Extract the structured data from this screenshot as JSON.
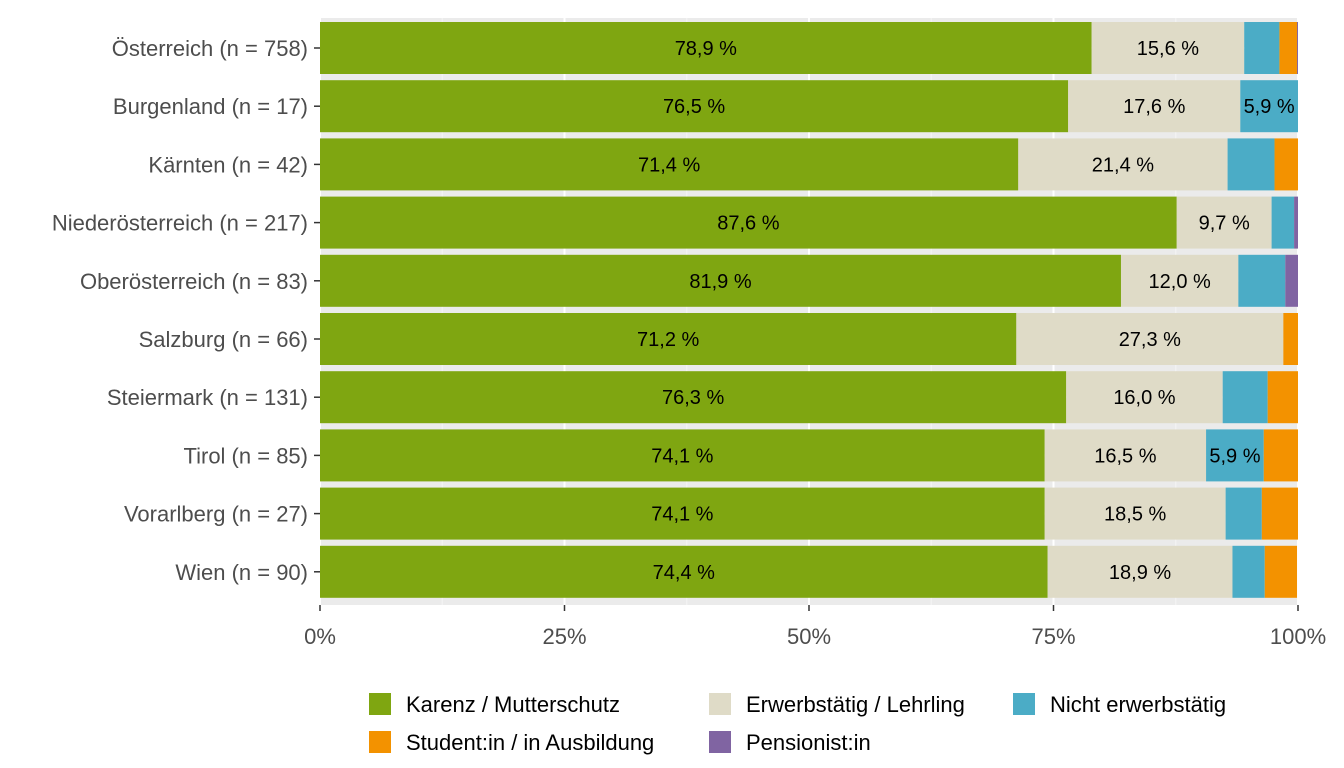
{
  "chart_data": {
    "type": "bar",
    "orientation": "horizontal",
    "stacked": "percent",
    "xlim": [
      0,
      100
    ],
    "ticks": [
      0,
      25,
      50,
      75,
      100
    ],
    "tick_labels": [
      "0%",
      "25%",
      "50%",
      "75%",
      "100%"
    ],
    "grid": true,
    "legend_position": "bottom",
    "categories": [
      "Österreich (n = 758)",
      "Burgenland (n = 17)",
      "Kärnten (n = 42)",
      "Niederösterreich (n = 217)",
      "Oberösterreich (n = 83)",
      "Salzburg (n = 66)",
      "Steiermark (n = 131)",
      "Tirol (n = 85)",
      "Vorarlberg (n = 27)",
      "Wien (n = 90)"
    ],
    "series": [
      {
        "name": "Karenz / Mutterschutz",
        "color": "#7fa611",
        "values": [
          78.9,
          76.5,
          71.4,
          87.6,
          81.9,
          71.2,
          76.3,
          74.1,
          74.1,
          74.4
        ],
        "labels": [
          "78,9 %",
          "76,5 %",
          "71,4 %",
          "87,6 %",
          "81,9 %",
          "71,2 %",
          "76,3 %",
          "74,1 %",
          "74,1 %",
          "74,4 %"
        ]
      },
      {
        "name": "Erwerbstätig / Lehrling",
        "color": "#dfdbc7",
        "values": [
          15.6,
          17.6,
          21.4,
          9.7,
          12.0,
          27.3,
          16.0,
          16.5,
          18.5,
          18.9
        ],
        "labels": [
          "15,6 %",
          "17,6 %",
          "21,4 %",
          "9,7 %",
          "12,0 %",
          "27,3 %",
          "16,0 %",
          "16,5 %",
          "18,5 %",
          "18,9 %"
        ]
      },
      {
        "name": "Nicht erwerbstätig",
        "color": "#4bacc6",
        "values": [
          3.6,
          5.9,
          4.8,
          2.3,
          4.8,
          0.0,
          4.6,
          5.9,
          3.7,
          3.3
        ],
        "labels": [
          "",
          "5,9 %",
          "",
          "",
          "",
          "",
          "",
          "5,9 %",
          "",
          ""
        ]
      },
      {
        "name": "Student:in / in Ausbildung",
        "color": "#f39200",
        "values": [
          1.8,
          0.0,
          2.4,
          0.0,
          0.0,
          1.5,
          3.1,
          3.5,
          3.7,
          3.3
        ],
        "labels": [
          "",
          "",
          "",
          "",
          "",
          "",
          "",
          "",
          "",
          ""
        ]
      },
      {
        "name": "Pensionist:in",
        "color": "#8064a2",
        "values": [
          0.1,
          0.0,
          0.0,
          0.4,
          1.3,
          0.0,
          0.0,
          0.0,
          0.0,
          0.0
        ],
        "labels": [
          "",
          "",
          "",
          "",
          "",
          "",
          "",
          "",
          "",
          ""
        ]
      }
    ],
    "legend_order": [
      0,
      1,
      2,
      3,
      4
    ]
  }
}
